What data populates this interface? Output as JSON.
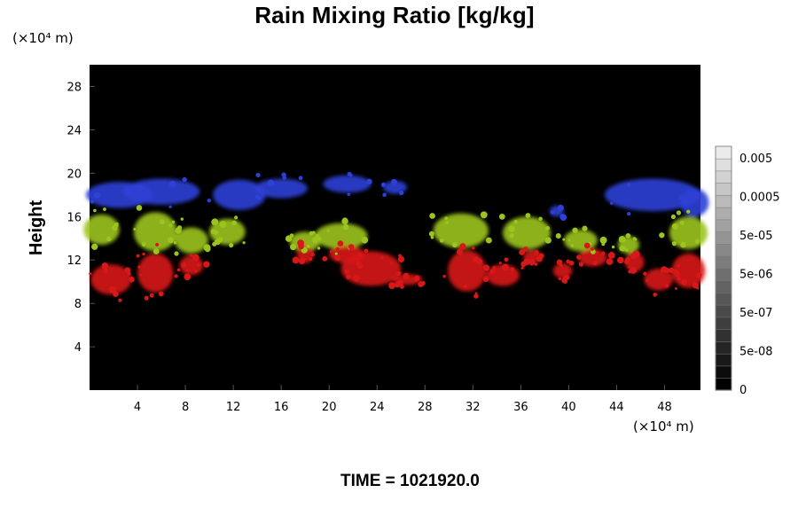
{
  "chart_data": {
    "type": "heatmap",
    "title": "Rain Mixing Ratio [kg/kg]",
    "ylabel": "Height",
    "xlabel": "",
    "y_unit_label": "(×10⁴ m)",
    "x_unit_label": "(×10⁴ m)",
    "xlim": [
      0,
      51
    ],
    "ylim": [
      0,
      30
    ],
    "x_ticks": [
      "4",
      "8",
      "12",
      "16",
      "20",
      "24",
      "28",
      "32",
      "36",
      "40",
      "44",
      "48"
    ],
    "y_ticks": [
      "4",
      "8",
      "12",
      "16",
      "20",
      "24",
      "28"
    ],
    "colorbar_labels": [
      "0",
      "5e-08",
      "5e-07",
      "5e-06",
      "5e-05",
      "0.0005",
      "0.005"
    ],
    "background_color": "#000000",
    "layers": [
      {
        "color": "#d81818",
        "height_range": [
          8.5,
          13
        ]
      },
      {
        "color": "#9cc41e",
        "height_range": [
          12.5,
          16.5
        ]
      },
      {
        "color": "#2e40d6",
        "height_range": [
          16,
          19.5
        ]
      }
    ],
    "blobs": [
      {
        "layer": 2,
        "x": 2.5,
        "y": 18.0,
        "rx": 2.8,
        "ry": 1.2
      },
      {
        "layer": 2,
        "x": 6.0,
        "y": 18.3,
        "rx": 3.2,
        "ry": 1.2
      },
      {
        "layer": 2,
        "x": 12.5,
        "y": 18.0,
        "rx": 2.2,
        "ry": 1.4
      },
      {
        "layer": 2,
        "x": 16.0,
        "y": 18.6,
        "rx": 2.2,
        "ry": 0.9
      },
      {
        "layer": 2,
        "x": 21.5,
        "y": 19.0,
        "rx": 2.0,
        "ry": 0.8
      },
      {
        "layer": 2,
        "x": 25.5,
        "y": 18.7,
        "rx": 1.0,
        "ry": 0.6
      },
      {
        "layer": 2,
        "x": 39.0,
        "y": 16.5,
        "rx": 0.6,
        "ry": 0.5
      },
      {
        "layer": 2,
        "x": 47.0,
        "y": 18.0,
        "rx": 4.0,
        "ry": 1.5
      },
      {
        "layer": 2,
        "x": 50.5,
        "y": 17.3,
        "rx": 1.2,
        "ry": 1.3
      },
      {
        "layer": 1,
        "x": 1.0,
        "y": 14.8,
        "rx": 1.5,
        "ry": 1.4
      },
      {
        "layer": 1,
        "x": 5.5,
        "y": 14.6,
        "rx": 1.8,
        "ry": 1.8
      },
      {
        "layer": 1,
        "x": 8.5,
        "y": 13.8,
        "rx": 1.4,
        "ry": 1.2
      },
      {
        "layer": 1,
        "x": 11.5,
        "y": 14.6,
        "rx": 1.5,
        "ry": 1.2
      },
      {
        "layer": 1,
        "x": 18.0,
        "y": 13.7,
        "rx": 1.3,
        "ry": 0.9
      },
      {
        "layer": 1,
        "x": 21.0,
        "y": 14.2,
        "rx": 2.2,
        "ry": 1.2
      },
      {
        "layer": 1,
        "x": 31.0,
        "y": 14.7,
        "rx": 2.3,
        "ry": 1.6
      },
      {
        "layer": 1,
        "x": 36.5,
        "y": 14.5,
        "rx": 2.0,
        "ry": 1.5
      },
      {
        "layer": 1,
        "x": 41.0,
        "y": 13.8,
        "rx": 1.4,
        "ry": 1.0
      },
      {
        "layer": 1,
        "x": 45.0,
        "y": 13.4,
        "rx": 0.9,
        "ry": 0.8
      },
      {
        "layer": 1,
        "x": 50.0,
        "y": 14.5,
        "rx": 1.6,
        "ry": 1.5
      },
      {
        "layer": 0,
        "x": 1.8,
        "y": 10.2,
        "rx": 1.7,
        "ry": 1.4
      },
      {
        "layer": 0,
        "x": 5.5,
        "y": 10.8,
        "rx": 1.5,
        "ry": 1.8
      },
      {
        "layer": 0,
        "x": 8.5,
        "y": 11.5,
        "rx": 1.0,
        "ry": 0.9
      },
      {
        "layer": 0,
        "x": 18.0,
        "y": 12.5,
        "rx": 0.7,
        "ry": 0.8
      },
      {
        "layer": 0,
        "x": 21.5,
        "y": 12.5,
        "rx": 1.5,
        "ry": 0.8
      },
      {
        "layer": 0,
        "x": 23.5,
        "y": 11.2,
        "rx": 2.5,
        "ry": 1.6
      },
      {
        "layer": 0,
        "x": 26.5,
        "y": 10.2,
        "rx": 1.3,
        "ry": 0.5
      },
      {
        "layer": 0,
        "x": 31.5,
        "y": 11.0,
        "rx": 1.6,
        "ry": 1.9
      },
      {
        "layer": 0,
        "x": 34.5,
        "y": 10.6,
        "rx": 1.4,
        "ry": 1.0
      },
      {
        "layer": 0,
        "x": 37.0,
        "y": 12.3,
        "rx": 0.8,
        "ry": 0.6
      },
      {
        "layer": 0,
        "x": 39.5,
        "y": 11.0,
        "rx": 0.8,
        "ry": 0.7
      },
      {
        "layer": 0,
        "x": 42.0,
        "y": 12.2,
        "rx": 1.2,
        "ry": 0.8
      },
      {
        "layer": 0,
        "x": 45.5,
        "y": 11.8,
        "rx": 0.8,
        "ry": 0.9
      },
      {
        "layer": 0,
        "x": 47.5,
        "y": 10.2,
        "rx": 1.2,
        "ry": 1.0
      },
      {
        "layer": 0,
        "x": 50.0,
        "y": 11.0,
        "rx": 1.4,
        "ry": 1.6
      }
    ],
    "grid": false,
    "colorbar_position": "right"
  },
  "footer": {
    "time_text": "TIME = 1021920.0"
  }
}
